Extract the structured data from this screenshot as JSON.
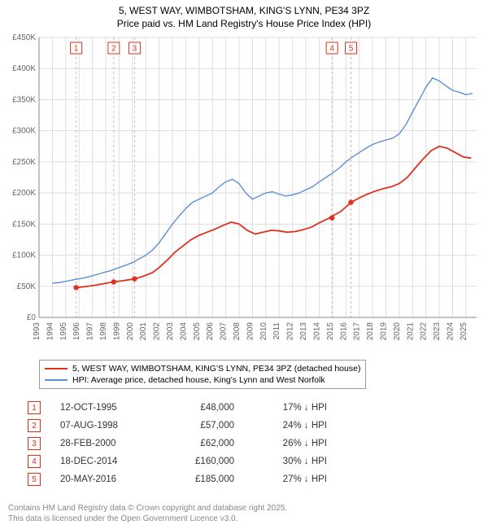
{
  "title_line1": "5, WEST WAY, WIMBOTSHAM, KING'S LYNN, PE34 3PZ",
  "title_line2": "Price paid vs. HM Land Registry's House Price Index (HPI)",
  "title_fontsize": 12,
  "chart": {
    "type": "line",
    "background_color": "#ffffff",
    "grid_color": "#dddddd",
    "axis_color": "#888888",
    "axis_text_color": "#666666",
    "x_years": [
      1993,
      1994,
      1995,
      1996,
      1997,
      1998,
      1999,
      2000,
      2001,
      2002,
      2003,
      2004,
      2005,
      2006,
      2007,
      2008,
      2009,
      2010,
      2011,
      2012,
      2013,
      2014,
      2015,
      2016,
      2017,
      2018,
      2019,
      2020,
      2021,
      2022,
      2023,
      2024,
      2025
    ],
    "xlim": [
      1993,
      2025.8
    ],
    "y_ticks": [
      0,
      50000,
      100000,
      150000,
      200000,
      250000,
      300000,
      350000,
      400000,
      450000
    ],
    "y_tick_labels": [
      "£0",
      "£50K",
      "£100K",
      "£150K",
      "£200K",
      "£250K",
      "£300K",
      "£350K",
      "£400K",
      "£450K"
    ],
    "ylim": [
      0,
      450000
    ],
    "tick_fontsize": 10,
    "series": [
      {
        "name": "hpi",
        "label": "HPI: Average price, detached house, King's Lynn and West Norfolk",
        "color": "#5b8fd6",
        "line_width": 1.4,
        "points": [
          [
            1994.0,
            55000
          ],
          [
            1994.5,
            56000
          ],
          [
            1995.0,
            58000
          ],
          [
            1995.5,
            60000
          ],
          [
            1996.0,
            62000
          ],
          [
            1996.5,
            64000
          ],
          [
            1997.0,
            67000
          ],
          [
            1997.5,
            70000
          ],
          [
            1998.0,
            73000
          ],
          [
            1998.5,
            76000
          ],
          [
            1999.0,
            80000
          ],
          [
            1999.5,
            84000
          ],
          [
            2000.0,
            88000
          ],
          [
            2000.5,
            94000
          ],
          [
            2001.0,
            100000
          ],
          [
            2001.5,
            108000
          ],
          [
            2002.0,
            120000
          ],
          [
            2002.5,
            135000
          ],
          [
            2003.0,
            150000
          ],
          [
            2003.5,
            163000
          ],
          [
            2004.0,
            175000
          ],
          [
            2004.5,
            185000
          ],
          [
            2005.0,
            190000
          ],
          [
            2005.5,
            195000
          ],
          [
            2006.0,
            200000
          ],
          [
            2006.5,
            210000
          ],
          [
            2007.0,
            218000
          ],
          [
            2007.5,
            222000
          ],
          [
            2008.0,
            215000
          ],
          [
            2008.5,
            200000
          ],
          [
            2009.0,
            190000
          ],
          [
            2009.5,
            195000
          ],
          [
            2010.0,
            200000
          ],
          [
            2010.5,
            202000
          ],
          [
            2011.0,
            198000
          ],
          [
            2011.5,
            195000
          ],
          [
            2012.0,
            197000
          ],
          [
            2012.5,
            200000
          ],
          [
            2013.0,
            205000
          ],
          [
            2013.5,
            210000
          ],
          [
            2014.0,
            218000
          ],
          [
            2014.5,
            225000
          ],
          [
            2015.0,
            232000
          ],
          [
            2015.5,
            240000
          ],
          [
            2016.0,
            250000
          ],
          [
            2016.5,
            258000
          ],
          [
            2017.0,
            265000
          ],
          [
            2017.5,
            272000
          ],
          [
            2018.0,
            278000
          ],
          [
            2018.5,
            282000
          ],
          [
            2019.0,
            285000
          ],
          [
            2019.5,
            288000
          ],
          [
            2020.0,
            295000
          ],
          [
            2020.5,
            310000
          ],
          [
            2021.0,
            330000
          ],
          [
            2021.5,
            350000
          ],
          [
            2022.0,
            370000
          ],
          [
            2022.5,
            385000
          ],
          [
            2023.0,
            380000
          ],
          [
            2023.5,
            372000
          ],
          [
            2024.0,
            365000
          ],
          [
            2024.5,
            362000
          ],
          [
            2025.0,
            358000
          ],
          [
            2025.5,
            360000
          ]
        ]
      },
      {
        "name": "property",
        "label": "5, WEST WAY, WIMBOTSHAM, KING'S LYNN, PE34 3PZ (detached house)",
        "color": "#e1301e",
        "line_width": 1.8,
        "points": [
          [
            1995.8,
            48000
          ],
          [
            1996.3,
            49000
          ],
          [
            1997.0,
            51000
          ],
          [
            1997.8,
            54000
          ],
          [
            1998.6,
            57000
          ],
          [
            1999.3,
            59000
          ],
          [
            2000.2,
            62000
          ],
          [
            2000.8,
            66000
          ],
          [
            2001.5,
            72000
          ],
          [
            2002.0,
            80000
          ],
          [
            2002.6,
            92000
          ],
          [
            2003.2,
            105000
          ],
          [
            2003.8,
            115000
          ],
          [
            2004.4,
            125000
          ],
          [
            2005.0,
            132000
          ],
          [
            2005.6,
            137000
          ],
          [
            2006.2,
            142000
          ],
          [
            2006.8,
            148000
          ],
          [
            2007.4,
            153000
          ],
          [
            2008.0,
            150000
          ],
          [
            2008.6,
            140000
          ],
          [
            2009.2,
            134000
          ],
          [
            2009.8,
            137000
          ],
          [
            2010.4,
            140000
          ],
          [
            2011.0,
            139000
          ],
          [
            2011.6,
            137000
          ],
          [
            2012.2,
            138000
          ],
          [
            2012.8,
            141000
          ],
          [
            2013.4,
            145000
          ],
          [
            2014.0,
            152000
          ],
          [
            2014.6,
            158000
          ],
          [
            2015.0,
            163000
          ],
          [
            2015.6,
            170000
          ],
          [
            2016.4,
            185000
          ],
          [
            2017.0,
            192000
          ],
          [
            2017.6,
            198000
          ],
          [
            2018.2,
            203000
          ],
          [
            2018.8,
            207000
          ],
          [
            2019.4,
            210000
          ],
          [
            2020.0,
            215000
          ],
          [
            2020.6,
            225000
          ],
          [
            2021.2,
            240000
          ],
          [
            2021.8,
            255000
          ],
          [
            2022.4,
            268000
          ],
          [
            2023.0,
            275000
          ],
          [
            2023.6,
            272000
          ],
          [
            2024.2,
            265000
          ],
          [
            2024.8,
            258000
          ],
          [
            2025.4,
            256000
          ]
        ]
      }
    ],
    "sale_markers": [
      {
        "n": "1",
        "year": 1995.78,
        "price": 48000
      },
      {
        "n": "2",
        "year": 1998.6,
        "price": 57000
      },
      {
        "n": "3",
        "year": 2000.16,
        "price": 62000
      },
      {
        "n": "4",
        "year": 2014.96,
        "price": 160000
      },
      {
        "n": "5",
        "year": 2016.38,
        "price": 185000
      }
    ],
    "marker_border_color": "#e1301e",
    "marker_line_color": "#e8b0a8",
    "marker_box_size": 14,
    "marker_fontsize": 10
  },
  "legend": {
    "border_color": "#999999",
    "fontsize": 10.5
  },
  "sales_table": {
    "fontsize": 11.5,
    "arrow_glyph": "↓",
    "hpi_suffix": "HPI",
    "rows": [
      {
        "n": "1",
        "date": "12-OCT-1995",
        "price_fmt": "£48,000",
        "pct": "17%"
      },
      {
        "n": "2",
        "date": "07-AUG-1998",
        "price_fmt": "£57,000",
        "pct": "24%"
      },
      {
        "n": "3",
        "date": "28-FEB-2000",
        "price_fmt": "£62,000",
        "pct": "26%"
      },
      {
        "n": "4",
        "date": "18-DEC-2014",
        "price_fmt": "£160,000",
        "pct": "30%"
      },
      {
        "n": "5",
        "date": "20-MAY-2016",
        "price_fmt": "£185,000",
        "pct": "27%"
      }
    ]
  },
  "footer_line1": "Contains HM Land Registry data © Crown copyright and database right 2025.",
  "footer_line2": "This data is licensed under the Open Government Licence v3.0.",
  "footer_color": "#888888",
  "footer_fontsize": 10
}
